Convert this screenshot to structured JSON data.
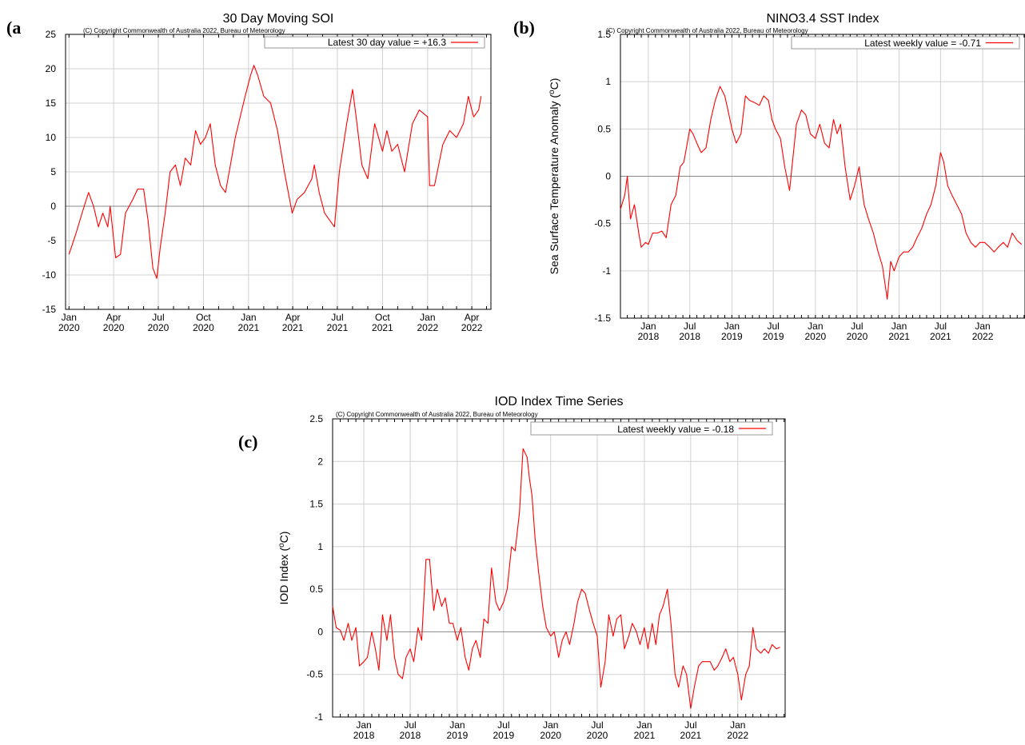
{
  "chart_data": [
    {
      "panel": "(a",
      "type": "line",
      "title": "30 Day Moving SOI",
      "copyright": "(C) Copyright Commonwealth of Australia 2022, Bureau of Meteorology",
      "legend": "Latest 30 day value = +16.3",
      "ylabel": "",
      "ylim": [
        -15,
        25
      ],
      "yticks": [
        -15,
        -10,
        -5,
        0,
        5,
        10,
        15,
        20,
        25
      ],
      "xlim": [
        "2019-12-25",
        "2022-05-10"
      ],
      "xticks": [
        {
          "date": "2020-01-01",
          "line1": "Jan",
          "line2": "2020"
        },
        {
          "date": "2020-04-01",
          "line1": "Apr",
          "line2": "2020"
        },
        {
          "date": "2020-07-01",
          "line1": "Jul",
          "line2": "2020"
        },
        {
          "date": "2020-10-01",
          "line1": "Oct",
          "line2": "2020"
        },
        {
          "date": "2021-01-01",
          "line1": "Jan",
          "line2": "2021"
        },
        {
          "date": "2021-04-01",
          "line1": "Apr",
          "line2": "2021"
        },
        {
          "date": "2021-07-01",
          "line1": "Jul",
          "line2": "2021"
        },
        {
          "date": "2021-10-01",
          "line1": "Oct",
          "line2": "2021"
        },
        {
          "date": "2022-01-01",
          "line1": "Jan",
          "line2": "2022"
        },
        {
          "date": "2022-04-01",
          "line1": "Apr",
          "line2": "2022"
        }
      ],
      "grid": true,
      "legend_position": "top-right",
      "line_color": "#ff0000",
      "series": [
        {
          "x": [
            "2020-01-01",
            "2020-01-15",
            "2020-02-01",
            "2020-02-10",
            "2020-02-20",
            "2020-03-01",
            "2020-03-10",
            "2020-03-20",
            "2020-03-25",
            "2020-04-05",
            "2020-04-15",
            "2020-04-25",
            "2020-05-10",
            "2020-05-20",
            "2020-06-01",
            "2020-06-10",
            "2020-06-20",
            "2020-06-28",
            "2020-07-05",
            "2020-07-15",
            "2020-07-25",
            "2020-08-05",
            "2020-08-15",
            "2020-08-25",
            "2020-09-05",
            "2020-09-15",
            "2020-09-25",
            "2020-10-05",
            "2020-10-15",
            "2020-10-25",
            "2020-11-05",
            "2020-11-15",
            "2020-11-25",
            "2020-12-05",
            "2020-12-15",
            "2020-12-25",
            "2021-01-05",
            "2021-01-12",
            "2021-01-20",
            "2021-02-01",
            "2021-02-15",
            "2021-03-01",
            "2021-03-15",
            "2021-03-31",
            "2021-04-10",
            "2021-04-25",
            "2021-05-10",
            "2021-05-15",
            "2021-05-25",
            "2021-06-05",
            "2021-06-15",
            "2021-06-25",
            "2021-07-05",
            "2021-07-20",
            "2021-08-01",
            "2021-08-10",
            "2021-08-20",
            "2021-09-01",
            "2021-09-15",
            "2021-10-01",
            "2021-10-10",
            "2021-10-20",
            "2021-11-01",
            "2021-11-15",
            "2021-12-01",
            "2021-12-15",
            "2022-01-01",
            "2022-01-05",
            "2022-01-15",
            "2022-02-01",
            "2022-02-15",
            "2022-03-01",
            "2022-03-15",
            "2022-03-25",
            "2022-04-01",
            "2022-04-05",
            "2022-04-15",
            "2022-04-20"
          ],
          "y": [
            -7,
            -4,
            0,
            2,
            0,
            -3,
            -1,
            -3,
            0,
            -7.5,
            -7,
            -1,
            1,
            2.5,
            2.5,
            -2,
            -9,
            -10.5,
            -6,
            -1,
            5,
            6,
            3,
            7,
            6,
            11,
            9,
            10,
            12,
            6,
            3,
            2,
            6,
            10,
            13,
            16,
            19,
            20.5,
            19,
            16,
            15,
            11,
            5,
            -1,
            1,
            2,
            4,
            6,
            2,
            -1,
            -2,
            -3,
            5,
            12,
            17,
            12,
            6,
            4,
            12,
            8,
            11,
            8,
            9,
            5,
            12,
            14,
            13,
            3,
            3,
            9,
            11,
            10,
            12,
            16,
            14,
            13,
            14,
            16
          ]
        }
      ]
    },
    {
      "panel": "(b)",
      "type": "line",
      "title": "NINO3.4 SST Index",
      "copyright": "(C) Copyright Commonwealth of Australia 2022, Bureau of Meteorology",
      "legend": "Latest weekly value = -0.71",
      "ylabel": "Sea Surface Temperature Anomaly (",
      "ylabel_sup": "o",
      "ylabel_end": "C)",
      "ylim": [
        -1.5,
        1.5
      ],
      "yticks": [
        -1.5,
        -1,
        -0.5,
        0,
        0.5,
        1,
        1.5
      ],
      "xlim": [
        "2017-09-01",
        "2022-07-05"
      ],
      "xticks": [
        {
          "date": "2018-01-01",
          "line1": "Jan",
          "line2": "2018"
        },
        {
          "date": "2018-07-01",
          "line1": "Jul",
          "line2": "2018"
        },
        {
          "date": "2019-01-01",
          "line1": "Jan",
          "line2": "2019"
        },
        {
          "date": "2019-07-01",
          "line1": "Jul",
          "line2": "2019"
        },
        {
          "date": "2020-01-01",
          "line1": "Jan",
          "line2": "2020"
        },
        {
          "date": "2020-07-01",
          "line1": "Jul",
          "line2": "2020"
        },
        {
          "date": "2021-01-01",
          "line1": "Jan",
          "line2": "2021"
        },
        {
          "date": "2021-07-01",
          "line1": "Jul",
          "line2": "2021"
        },
        {
          "date": "2022-01-01",
          "line1": "Jan",
          "line2": "2022"
        }
      ],
      "grid": true,
      "legend_position": "top-right",
      "line_color": "#ff0000",
      "series": [
        {
          "x": [
            "2017-09-01",
            "2017-09-20",
            "2017-10-01",
            "2017-10-15",
            "2017-11-01",
            "2017-11-20",
            "2017-12-01",
            "2017-12-20",
            "2018-01-01",
            "2018-01-20",
            "2018-02-10",
            "2018-03-01",
            "2018-03-20",
            "2018-04-10",
            "2018-05-01",
            "2018-05-20",
            "2018-06-05",
            "2018-06-20",
            "2018-07-01",
            "2018-07-15",
            "2018-08-01",
            "2018-08-20",
            "2018-09-10",
            "2018-10-01",
            "2018-10-20",
            "2018-11-10",
            "2018-12-01",
            "2018-12-15",
            "2019-01-01",
            "2019-01-20",
            "2019-02-10",
            "2019-03-01",
            "2019-03-20",
            "2019-04-10",
            "2019-05-01",
            "2019-05-20",
            "2019-06-10",
            "2019-06-25",
            "2019-07-10",
            "2019-08-01",
            "2019-08-20",
            "2019-09-10",
            "2019-09-25",
            "2019-10-10",
            "2019-11-01",
            "2019-11-20",
            "2019-12-10",
            "2020-01-01",
            "2020-01-20",
            "2020-02-10",
            "2020-03-01",
            "2020-03-20",
            "2020-04-05",
            "2020-04-20",
            "2020-05-10",
            "2020-06-01",
            "2020-06-20",
            "2020-07-10",
            "2020-08-01",
            "2020-08-20",
            "2020-09-10",
            "2020-10-01",
            "2020-10-20",
            "2020-11-10",
            "2020-11-25",
            "2020-12-10",
            "2021-01-01",
            "2021-01-20",
            "2021-02-10",
            "2021-03-01",
            "2021-03-20",
            "2021-04-10",
            "2021-05-01",
            "2021-05-20",
            "2021-06-10",
            "2021-07-01",
            "2021-07-15",
            "2021-08-01",
            "2021-08-20",
            "2021-09-10",
            "2021-10-01",
            "2021-10-20",
            "2021-11-10",
            "2021-12-01",
            "2021-12-20",
            "2022-01-10",
            "2022-02-01",
            "2022-02-20",
            "2022-03-10",
            "2022-04-01",
            "2022-04-20",
            "2022-05-10",
            "2022-06-01",
            "2022-06-20"
          ],
          "y": [
            -0.35,
            -0.2,
            0,
            -0.45,
            -0.3,
            -0.6,
            -0.75,
            -0.7,
            -0.72,
            -0.6,
            -0.6,
            -0.58,
            -0.65,
            -0.3,
            -0.2,
            0.1,
            0.15,
            0.35,
            0.5,
            0.45,
            0.35,
            0.25,
            0.3,
            0.6,
            0.8,
            0.95,
            0.85,
            0.7,
            0.5,
            0.35,
            0.45,
            0.85,
            0.8,
            0.78,
            0.75,
            0.85,
            0.8,
            0.6,
            0.5,
            0.4,
            0.1,
            -0.15,
            0.2,
            0.55,
            0.7,
            0.65,
            0.45,
            0.4,
            0.55,
            0.35,
            0.3,
            0.6,
            0.45,
            0.55,
            0.1,
            -0.25,
            -0.1,
            0.1,
            -0.3,
            -0.45,
            -0.6,
            -0.8,
            -0.95,
            -1.3,
            -0.9,
            -1.0,
            -0.85,
            -0.8,
            -0.8,
            -0.75,
            -0.65,
            -0.55,
            -0.4,
            -0.3,
            -0.1,
            0.25,
            0.15,
            -0.1,
            -0.2,
            -0.3,
            -0.4,
            -0.6,
            -0.7,
            -0.75,
            -0.7,
            -0.7,
            -0.75,
            -0.8,
            -0.75,
            -0.7,
            -0.75,
            -0.6,
            -0.68,
            -0.72
          ]
        }
      ]
    },
    {
      "panel": "(c)",
      "type": "line",
      "title": "IOD Index Time Series",
      "copyright": "(C) Copyright Commonwealth of Australia 2022, Bureau of Meteorology",
      "legend": "Latest weekly value = -0.18",
      "ylabel": "IOD Index (",
      "ylabel_sup": "o",
      "ylabel_end": "C)",
      "ylim": [
        -1,
        2.5
      ],
      "yticks": [
        -1,
        -0.5,
        0,
        0.5,
        1,
        1.5,
        2,
        2.5
      ],
      "xlim": [
        "2017-09-01",
        "2022-07-05"
      ],
      "xticks": [
        {
          "date": "2018-01-01",
          "line1": "Jan",
          "line2": "2018"
        },
        {
          "date": "2018-07-01",
          "line1": "Jul",
          "line2": "2018"
        },
        {
          "date": "2019-01-01",
          "line1": "Jan",
          "line2": "2019"
        },
        {
          "date": "2019-07-01",
          "line1": "Jul",
          "line2": "2019"
        },
        {
          "date": "2020-01-01",
          "line1": "Jan",
          "line2": "2020"
        },
        {
          "date": "2020-07-01",
          "line1": "Jul",
          "line2": "2020"
        },
        {
          "date": "2021-01-01",
          "line1": "Jan",
          "line2": "2021"
        },
        {
          "date": "2021-07-01",
          "line1": "Jul",
          "line2": "2021"
        },
        {
          "date": "2022-01-01",
          "line1": "Jan",
          "line2": "2022"
        }
      ],
      "grid": true,
      "legend_position": "top-right",
      "line_color": "#ff0000",
      "series": [
        {
          "x": [
            "2017-09-01",
            "2017-09-15",
            "2017-10-01",
            "2017-10-15",
            "2017-11-01",
            "2017-11-15",
            "2017-12-01",
            "2017-12-15",
            "2018-01-01",
            "2018-01-15",
            "2018-02-01",
            "2018-02-15",
            "2018-03-01",
            "2018-03-15",
            "2018-04-01",
            "2018-04-15",
            "2018-05-01",
            "2018-05-15",
            "2018-06-01",
            "2018-06-15",
            "2018-07-01",
            "2018-07-15",
            "2018-08-01",
            "2018-08-15",
            "2018-09-01",
            "2018-09-15",
            "2018-10-01",
            "2018-10-15",
            "2018-11-01",
            "2018-11-15",
            "2018-12-01",
            "2018-12-15",
            "2019-01-01",
            "2019-01-15",
            "2019-02-01",
            "2019-02-15",
            "2019-03-01",
            "2019-03-15",
            "2019-04-01",
            "2019-04-15",
            "2019-05-01",
            "2019-05-15",
            "2019-06-01",
            "2019-06-15",
            "2019-07-01",
            "2019-07-15",
            "2019-08-01",
            "2019-08-15",
            "2019-09-01",
            "2019-09-15",
            "2019-10-01",
            "2019-10-10",
            "2019-10-20",
            "2019-11-01",
            "2019-11-15",
            "2019-12-01",
            "2019-12-15",
            "2020-01-01",
            "2020-01-15",
            "2020-02-01",
            "2020-02-15",
            "2020-03-01",
            "2020-03-15",
            "2020-04-01",
            "2020-04-15",
            "2020-05-01",
            "2020-05-15",
            "2020-06-01",
            "2020-06-15",
            "2020-07-01",
            "2020-07-15",
            "2020-08-01",
            "2020-08-15",
            "2020-09-01",
            "2020-09-15",
            "2020-10-01",
            "2020-10-15",
            "2020-11-01",
            "2020-11-15",
            "2020-12-01",
            "2020-12-15",
            "2021-01-01",
            "2021-01-15",
            "2021-02-01",
            "2021-02-15",
            "2021-03-01",
            "2021-03-15",
            "2021-04-01",
            "2021-04-15",
            "2021-05-01",
            "2021-05-15",
            "2021-06-01",
            "2021-06-15",
            "2021-07-01",
            "2021-07-15",
            "2021-08-01",
            "2021-08-15",
            "2021-09-01",
            "2021-09-15",
            "2021-10-01",
            "2021-10-15",
            "2021-11-01",
            "2021-11-15",
            "2021-12-01",
            "2021-12-15",
            "2022-01-01",
            "2022-01-15",
            "2022-02-01",
            "2022-02-15",
            "2022-03-01",
            "2022-03-15",
            "2022-04-01",
            "2022-04-15",
            "2022-05-01",
            "2022-05-15",
            "2022-06-01",
            "2022-06-15"
          ],
          "y": [
            0.3,
            0.05,
            0.02,
            -0.1,
            0.1,
            -0.1,
            0.05,
            -0.4,
            -0.35,
            -0.3,
            0.0,
            -0.2,
            -0.45,
            0.2,
            -0.1,
            0.2,
            -0.3,
            -0.5,
            -0.55,
            -0.3,
            -0.2,
            -0.35,
            0.05,
            -0.1,
            0.85,
            0.85,
            0.25,
            0.5,
            0.3,
            0.4,
            0.1,
            0.1,
            -0.1,
            0.05,
            -0.3,
            -0.45,
            -0.2,
            -0.1,
            -0.3,
            0.15,
            0.1,
            0.75,
            0.35,
            0.25,
            0.35,
            0.5,
            1.0,
            0.95,
            1.4,
            2.15,
            2.05,
            1.8,
            1.6,
            1.1,
            0.7,
            0.3,
            0.05,
            -0.05,
            0.0,
            -0.3,
            -0.1,
            0.0,
            -0.15,
            0.1,
            0.35,
            0.5,
            0.45,
            0.25,
            0.1,
            -0.05,
            -0.65,
            -0.35,
            0.2,
            -0.05,
            0.15,
            0.2,
            -0.2,
            -0.05,
            0.1,
            0.0,
            -0.15,
            0.05,
            -0.2,
            0.1,
            -0.15,
            0.2,
            0.3,
            0.5,
            0.1,
            -0.5,
            -0.65,
            -0.4,
            -0.5,
            -0.9,
            -0.65,
            -0.4,
            -0.35,
            -0.35,
            -0.35,
            -0.45,
            -0.4,
            -0.3,
            -0.2,
            -0.35,
            -0.3,
            -0.5,
            -0.8,
            -0.5,
            -0.4,
            0.05,
            -0.2,
            -0.25,
            -0.2,
            -0.25,
            -0.15,
            -0.2,
            -0.18
          ]
        }
      ]
    }
  ]
}
